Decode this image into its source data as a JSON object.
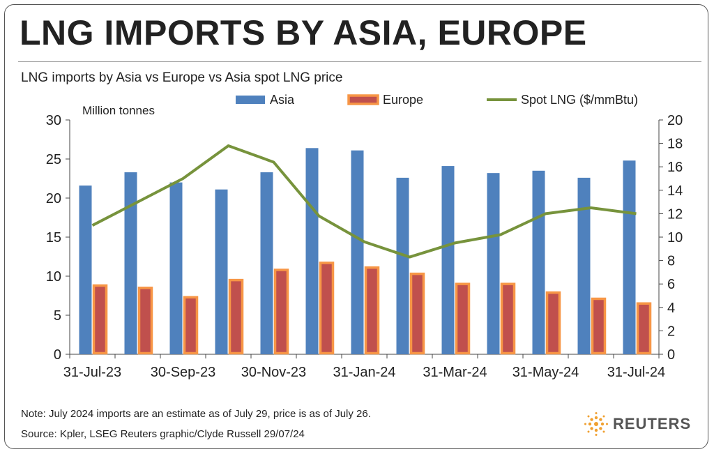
{
  "header": {
    "title": "LNG IMPORTS BY ASIA, EUROPE",
    "subtitle": "LNG imports by Asia vs Europe vs Asia spot LNG price"
  },
  "footer": {
    "note": "Note: July 2024 imports are an estimate as of July 29, price is as of July 26.",
    "source": "Source: Kpler, LSEG    Reuters graphic/Clyde Russell 29/07/24",
    "logo_text": "REUTERS",
    "logo_icon": "reuters-dot-logo-icon"
  },
  "chart_data": {
    "type": "bar",
    "ylabel": "Million tonnes",
    "ylim": [
      0,
      30
    ],
    "y_ticks": [
      "0",
      "5",
      "10",
      "15",
      "20",
      "25",
      "30"
    ],
    "y2lim": [
      0,
      20
    ],
    "y2_ticks": [
      "0",
      "2",
      "4",
      "6",
      "8",
      "10",
      "12",
      "14",
      "16",
      "18",
      "20"
    ],
    "categories": [
      "Jul-23",
      "Aug-23",
      "Sep-23",
      "Oct-23",
      "Nov-23",
      "Dec-23",
      "Jan-24",
      "Feb-24",
      "Mar-24",
      "Apr-24",
      "May-24",
      "Jun-24",
      "Jul-24"
    ],
    "x_tick_labels": [
      "31-Jul-23",
      "30-Sep-23",
      "30-Nov-23",
      "31-Jan-24",
      "31-Mar-24",
      "31-May-24",
      "31-Jul-24"
    ],
    "x_tick_label_indices": [
      0,
      2,
      4,
      6,
      8,
      10,
      12
    ],
    "legend_position": "top",
    "grid": false,
    "series": [
      {
        "name": "Asia",
        "type": "bar",
        "axis": "left",
        "color": "#4f81bd",
        "values": [
          21.6,
          23.3,
          22.0,
          21.1,
          23.3,
          26.4,
          26.1,
          22.6,
          24.1,
          23.2,
          23.5,
          22.6,
          24.8
        ]
      },
      {
        "name": "Europe",
        "type": "bar",
        "axis": "left",
        "color": "#c0504d",
        "border_color": "#f79646",
        "values": [
          8.8,
          8.5,
          7.3,
          9.5,
          10.8,
          11.7,
          11.1,
          10.3,
          9.0,
          9.0,
          7.9,
          7.1,
          6.5
        ]
      },
      {
        "name": "Spot LNG ($/mmBtu)",
        "type": "line",
        "axis": "right",
        "color": "#77933c",
        "values": [
          11.0,
          13.0,
          15.0,
          17.8,
          16.4,
          11.8,
          9.6,
          8.3,
          9.5,
          10.2,
          12.0,
          12.5,
          12.0
        ]
      }
    ]
  }
}
